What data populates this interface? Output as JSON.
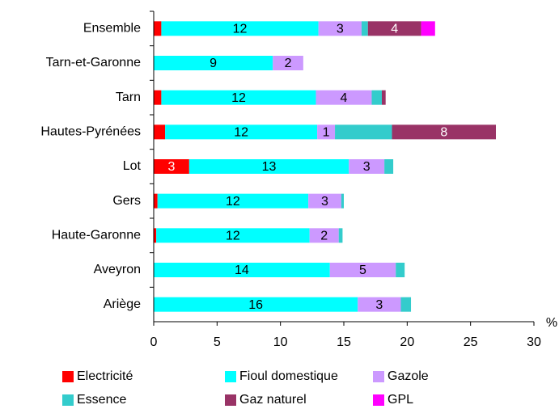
{
  "chart_data": {
    "type": "stacked_barh",
    "categories": [
      "Ensemble",
      "Tarn-et-Garonne",
      "Tarn",
      "Hautes-Pyrénées",
      "Lot",
      "Gers",
      "Haute-Garonne",
      "Aveyron",
      "Ariège"
    ],
    "series": [
      {
        "name": "Electricité",
        "color": "#ff0000",
        "label_color": "#ffffff",
        "values": [
          0.6,
          0,
          0.6,
          0.9,
          2.8,
          0.3,
          0.2,
          0,
          0
        ],
        "value_labels": [
          null,
          null,
          null,
          null,
          "3",
          null,
          null,
          null,
          null
        ]
      },
      {
        "name": "Fioul domestique",
        "color": "#00ffff",
        "label_color": "#000000",
        "values": [
          12.4,
          9.4,
          12.2,
          12.0,
          12.6,
          11.9,
          12.1,
          13.9,
          16.1
        ],
        "value_labels": [
          "12",
          "9",
          "12",
          "12",
          "13",
          "12",
          "12",
          "14",
          "16"
        ]
      },
      {
        "name": "Gazole",
        "color": "#cc99ff",
        "label_color": "#000000",
        "values": [
          3.4,
          2.4,
          4.4,
          1.4,
          2.8,
          2.6,
          2.3,
          5.2,
          3.4
        ],
        "value_labels": [
          "3",
          "2",
          "4",
          "1",
          "3",
          "3",
          "2",
          "5",
          "3"
        ]
      },
      {
        "name": "Essence",
        "color": "#33cccc",
        "label_color": "#000000",
        "values": [
          0.5,
          0,
          0.8,
          4.5,
          0.7,
          0.2,
          0.3,
          0.7,
          0.8
        ],
        "value_labels": [
          null,
          null,
          null,
          null,
          null,
          null,
          null,
          null,
          null
        ]
      },
      {
        "name": "Gaz naturel",
        "color": "#993366",
        "label_color": "#ffffff",
        "values": [
          4.2,
          0,
          0.3,
          8.2,
          0,
          0,
          0,
          0,
          0
        ],
        "value_labels": [
          "4",
          null,
          null,
          "8",
          null,
          null,
          null,
          null,
          null
        ]
      },
      {
        "name": "GPL",
        "color": "#ff00ff",
        "label_color": "#000000",
        "values": [
          1.1,
          0,
          0,
          0,
          0,
          0,
          0,
          0,
          0
        ],
        "value_labels": [
          null,
          null,
          null,
          null,
          null,
          null,
          null,
          null,
          null
        ]
      }
    ],
    "x_label": "%",
    "xlim": [
      0,
      30
    ],
    "xticks": [
      0,
      5,
      10,
      15,
      20,
      25,
      30
    ]
  }
}
